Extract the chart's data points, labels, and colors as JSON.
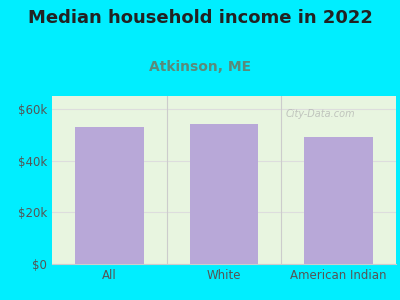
{
  "title": "Median household income in 2022",
  "subtitle": "Atkinson, ME",
  "categories": [
    "All",
    "White",
    "American Indian"
  ],
  "values": [
    53000,
    54000,
    49000
  ],
  "bar_color": "#b8a8d8",
  "background_outer": "#00eeff",
  "background_inner_top": "#e8f5e0",
  "background_inner_bottom": "#f8fef4",
  "title_fontsize": 13,
  "title_color": "#222222",
  "subtitle_fontsize": 10,
  "subtitle_color": "#5a8a7a",
  "ylabel_ticks": [
    "$0",
    "$20k",
    "$40k",
    "$60k"
  ],
  "ytick_values": [
    0,
    20000,
    40000,
    60000
  ],
  "ylim": [
    0,
    65000
  ],
  "watermark": "City-Data.com",
  "tick_color": "#555555",
  "grid_color": "#dddddd",
  "separator_color": "#cccccc"
}
